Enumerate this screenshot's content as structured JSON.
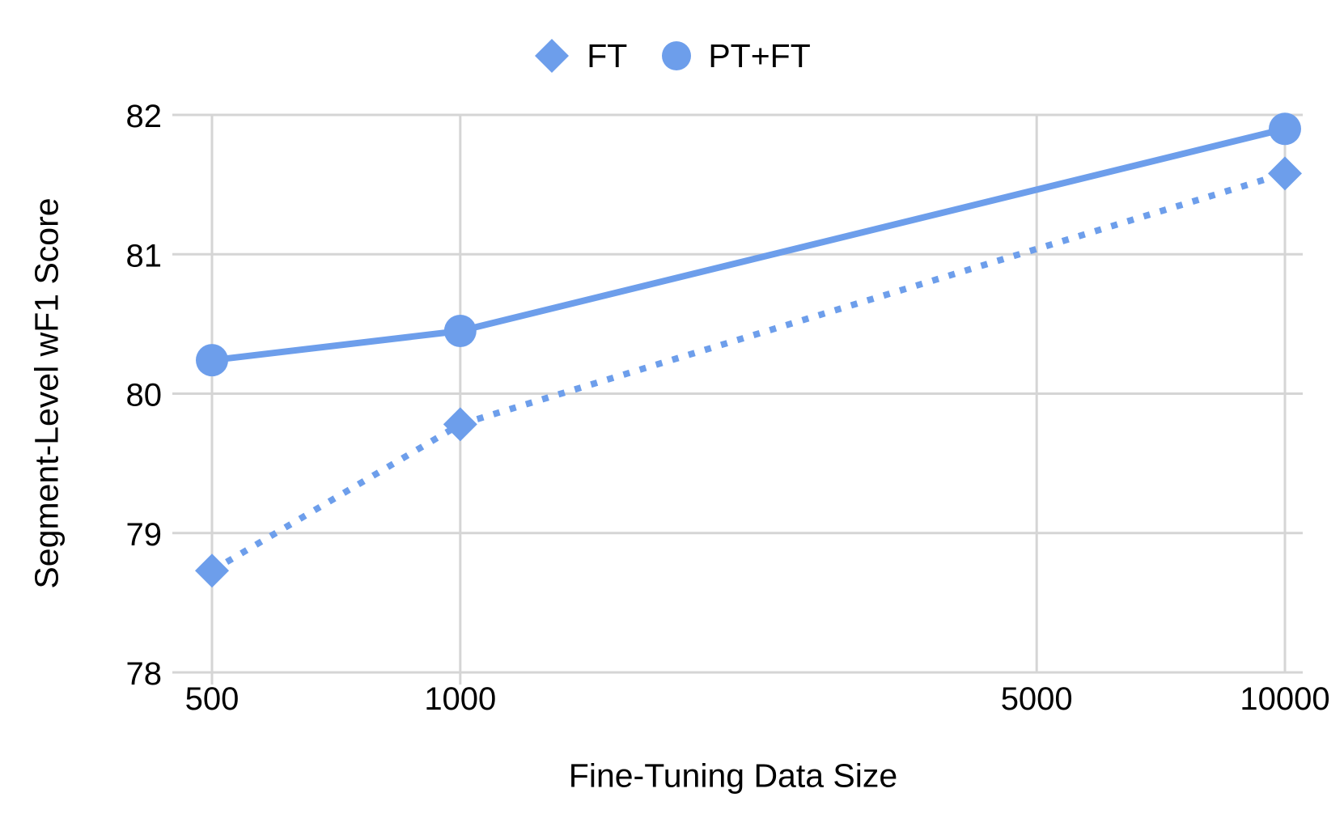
{
  "chart_data": {
    "type": "line",
    "title": "",
    "xlabel": "Fine-Tuning Data Size",
    "ylabel": "Segment-Level wF1 Score",
    "x_scale": "log",
    "x_ticks": [
      500,
      1000,
      5000,
      10000
    ],
    "y_ticks": [
      78,
      79,
      80,
      81,
      82
    ],
    "ylim": [
      78,
      82
    ],
    "xlim": [
      500,
      10000
    ],
    "grid": true,
    "legend_position": "top-center",
    "series": [
      {
        "name": "FT",
        "marker": "diamond",
        "line_style": "dotted",
        "x": [
          500,
          1000,
          10000
        ],
        "y": [
          78.73,
          79.78,
          81.58
        ]
      },
      {
        "name": "PT+FT",
        "marker": "circle",
        "line_style": "solid",
        "x": [
          500,
          1000,
          10000
        ],
        "y": [
          80.24,
          80.45,
          81.9
        ]
      }
    ],
    "colors": {
      "series": "#6d9eeb",
      "grid": "#d5d5d5",
      "text": "#000000",
      "background": "#ffffff"
    }
  }
}
